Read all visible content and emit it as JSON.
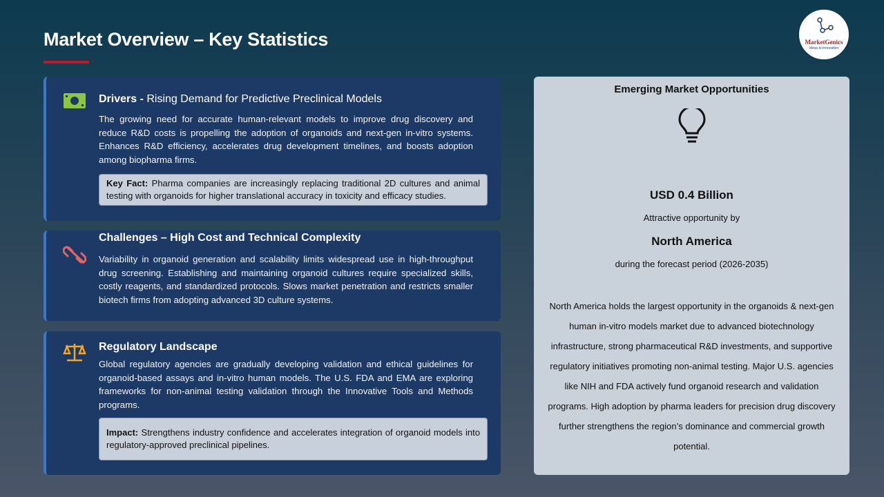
{
  "title": "Market Overview – Key Statistics",
  "logo": {
    "name": "MarketGenics",
    "tagline": "Ideas to Innovation"
  },
  "drivers": {
    "label": "Drivers -",
    "heading": " Rising Demand for Predictive Preclinical Models",
    "body": "The growing need for accurate human-relevant models to improve drug discovery and reduce R&D costs is propelling the adoption of organoids and next-gen in-vitro systems. Enhances R&D efficiency, accelerates drug development timelines, and boosts adoption among biopharma firms.",
    "note_label": "Key Fact:",
    "note": " Pharma companies are increasingly replacing traditional 2D cultures and animal testing with organoids for higher translational accuracy in toxicity and efficacy studies.",
    "icon": "money-icon",
    "icon_color": "#8dc63f"
  },
  "challenges": {
    "heading": "Challenges – High Cost and Technical Complexity",
    "body": "Variability in organoid generation and scalability limits widespread use in high-throughput drug screening. Establishing and maintaining organoid cultures require specialized skills, costly reagents, and standardized protocols. Slows market penetration and restricts smaller biotech firms from adopting advanced 3D culture systems.",
    "icon": "broken-link-icon",
    "icon_color": "#e06666"
  },
  "regulatory": {
    "heading": "Regulatory Landscape",
    "body": "Global regulatory agencies are gradually developing validation and ethical guidelines for organoid-based assays and in-vitro human models. The U.S. FDA and EMA are exploring frameworks for non-animal testing validation through the Innovative Tools and Methods programs.",
    "note_label": "Impact:",
    "note": " Strengthens industry confidence and accelerates integration of organoid models into regulatory-approved preclinical pipelines.",
    "icon": "scales-icon",
    "icon_color": "#f5a623"
  },
  "opportunity": {
    "title": "Emerging Market Opportunities",
    "value": "USD 0.4 Billion",
    "by": "Attractive opportunity by",
    "region": "North America",
    "period": "during the forecast period (2026-2035)",
    "body": "North America holds the largest opportunity in the organoids & next-gen human in-vitro models market due to advanced biotechnology infrastructure, strong pharmaceutical R&D investments, and supportive regulatory initiatives promoting non-animal testing. Major U.S. agencies like NIH and FDA actively fund organoid research and validation programs. High adoption by pharma leaders for precision drug discovery further strengthens the region’s dominance and commercial growth potential."
  }
}
